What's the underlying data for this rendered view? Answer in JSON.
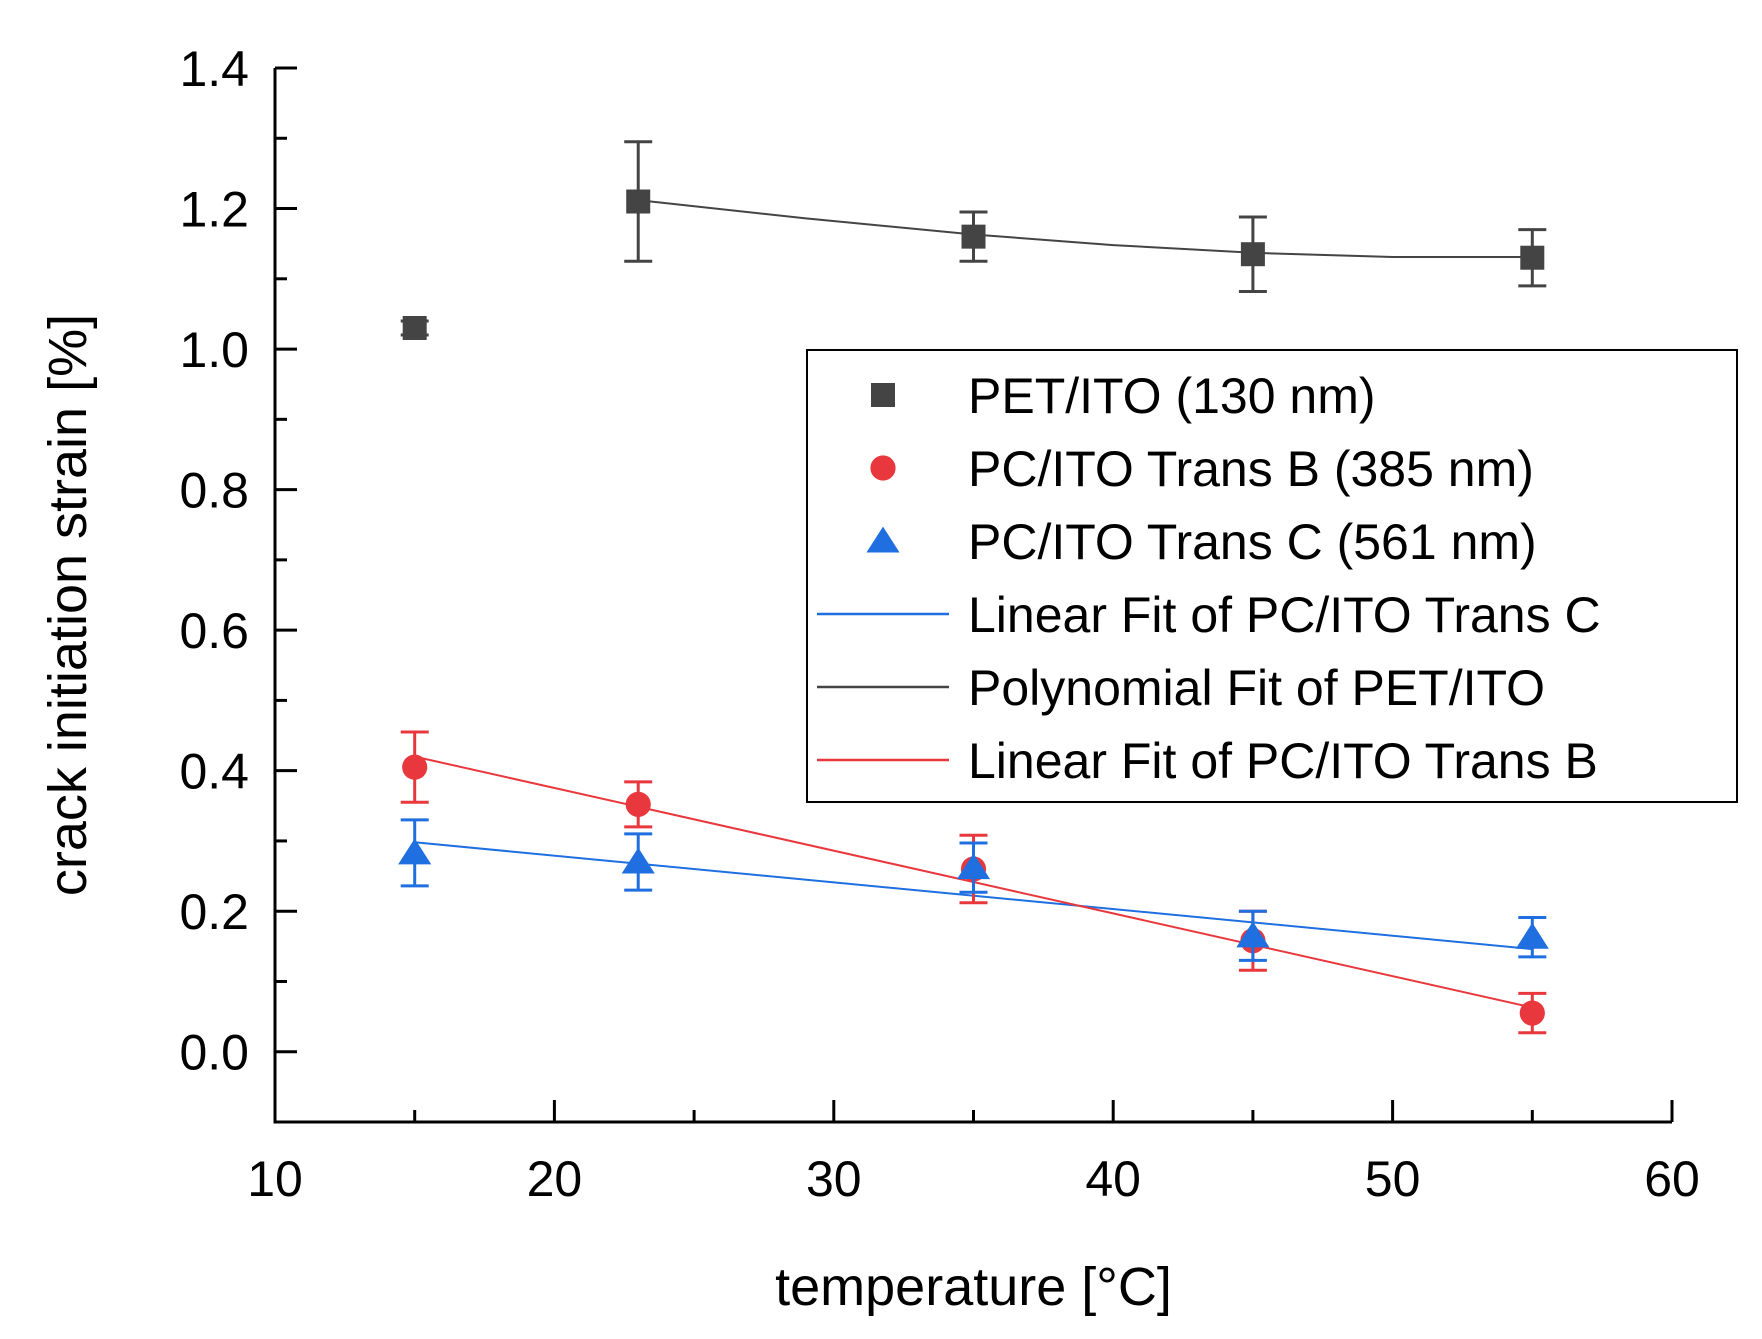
{
  "chart_data": {
    "type": "scatter",
    "xlabel": "temperature [°C]",
    "ylabel": "crack initiation strain [%]",
    "xlim": [
      10,
      60
    ],
    "ylim": [
      -0.1,
      1.4
    ],
    "xticks": [
      10,
      20,
      30,
      40,
      50,
      60
    ],
    "xtick_labels": [
      "10",
      "20",
      "30",
      "40",
      "50",
      "60"
    ],
    "yticks": [
      0.0,
      0.2,
      0.4,
      0.6,
      0.8,
      1.0,
      1.2,
      1.4
    ],
    "ytick_labels": [
      "0.0",
      "0.2",
      "0.4",
      "0.6",
      "0.8",
      "1.0",
      "1.2",
      "1.4"
    ],
    "grid": false,
    "legend_position": "center-right",
    "series": [
      {
        "name": "PET/ITO (130 nm)",
        "marker": "square",
        "color": "#444444",
        "x": [
          15,
          23,
          35,
          45,
          55
        ],
        "y": [
          1.03,
          1.21,
          1.16,
          1.135,
          1.13
        ],
        "err": [
          0.01,
          0.085,
          0.035,
          0.053,
          0.04
        ]
      },
      {
        "name": "PC/ITO Trans B (385 nm)",
        "marker": "circle",
        "color": "#e8383d",
        "x": [
          15,
          23,
          35,
          45,
          55
        ],
        "y": [
          0.405,
          0.352,
          0.26,
          0.158,
          0.055
        ],
        "err": [
          0.05,
          0.032,
          0.048,
          0.042,
          0.028
        ]
      },
      {
        "name": "PC/ITO Trans C (561 nm)",
        "marker": "triangle",
        "color": "#1f6fe0",
        "x": [
          15,
          23,
          35,
          45,
          55
        ],
        "y": [
          0.283,
          0.27,
          0.262,
          0.165,
          0.163
        ],
        "err": [
          0.047,
          0.04,
          0.035,
          0.035,
          0.028
        ]
      }
    ],
    "fits": [
      {
        "name": "Linear Fit of PC/ITO Trans C",
        "color": "#1f6fe0",
        "x": [
          15,
          55
        ],
        "y": [
          0.298,
          0.146
        ]
      },
      {
        "name": "Polynomial Fit of PET/ITO",
        "color": "#444444",
        "x": [
          23,
          29,
          35,
          40,
          45,
          50,
          55
        ],
        "y": [
          1.212,
          1.186,
          1.163,
          1.148,
          1.137,
          1.131,
          1.131
        ]
      },
      {
        "name": "Linear Fit of PC/ITO Trans B",
        "color": "#e8383d",
        "x": [
          15,
          55
        ],
        "y": [
          0.42,
          0.063
        ]
      }
    ]
  }
}
